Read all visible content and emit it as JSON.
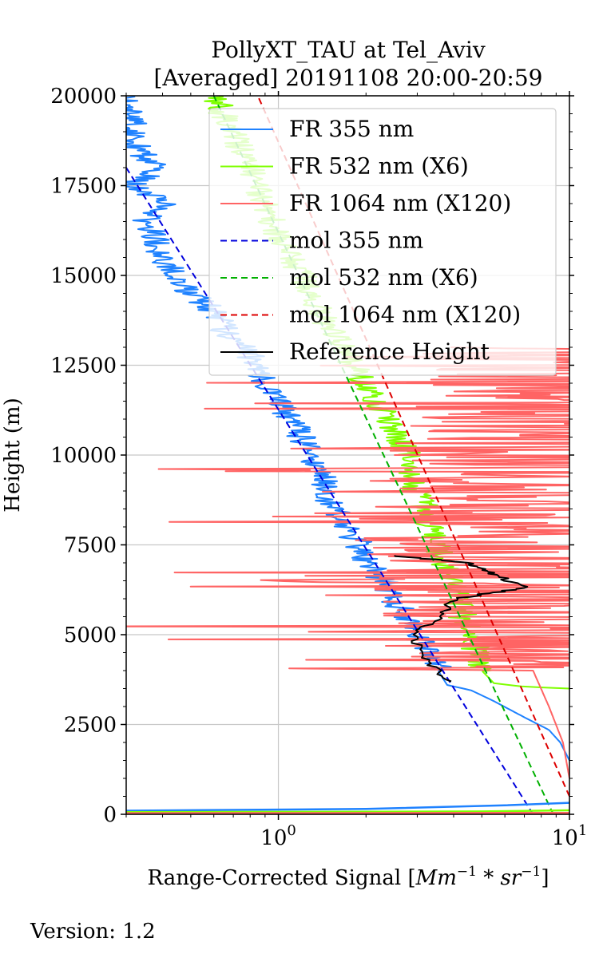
{
  "chart_data": {
    "type": "line",
    "title": [
      "PollyXT_TAU at Tel_Aviv",
      "[Averaged] 20191108 20:00-20:59"
    ],
    "xlabel": "Range-Corrected Signal [Mm^-1 * sr^-1]",
    "xlabel_parts": {
      "prefix": "Range-Corrected Signal [",
      "unit1": "Mm",
      "exp1": "−1",
      "mid": " * ",
      "unit2": "sr",
      "exp2": "−1",
      "suffix": "]"
    },
    "ylabel": "Height (m)",
    "xscale": "log",
    "xlim": [
      0.3,
      10
    ],
    "ylim": [
      0,
      20000
    ],
    "xticks": [
      {
        "value": 1,
        "base": "10",
        "exp": "0"
      },
      {
        "value": 10,
        "base": "10",
        "exp": "1"
      }
    ],
    "yticks": [
      "0",
      "2500",
      "5000",
      "7500",
      "10000",
      "12500",
      "15000",
      "17500",
      "20000"
    ],
    "grid": true,
    "legend_position": "upper-right",
    "version": "Version: 1.2",
    "series": [
      {
        "name": "FR 355 nm",
        "color": "#1f82ff",
        "style": "solid",
        "points": [
          [
            10,
            1500
          ],
          [
            9.3,
            2000
          ],
          [
            8.5,
            2350
          ],
          [
            7.0,
            2700
          ],
          [
            5.5,
            3150
          ],
          [
            4.6,
            3450
          ],
          [
            3.8,
            3600
          ],
          [
            3.6,
            3900
          ],
          [
            3.3,
            4500
          ],
          [
            3.0,
            5000
          ],
          [
            2.85,
            5300
          ],
          [
            2.5,
            6000
          ],
          [
            2.3,
            6500
          ],
          [
            2.0,
            7000
          ],
          [
            1.9,
            7500
          ],
          [
            1.7,
            8000
          ],
          [
            1.55,
            8500
          ],
          [
            1.45,
            9000
          ],
          [
            1.4,
            9500
          ],
          [
            1.3,
            10000
          ],
          [
            1.2,
            10500
          ],
          [
            1.1,
            11000
          ],
          [
            1.0,
            11500
          ],
          [
            0.9,
            12000
          ],
          [
            0.85,
            12500
          ],
          [
            0.75,
            13000
          ],
          [
            0.65,
            13500
          ],
          [
            0.6,
            14000
          ],
          [
            0.5,
            14500
          ],
          [
            0.45,
            15000
          ],
          [
            0.4,
            15500
          ],
          [
            0.38,
            16000
          ],
          [
            0.35,
            16500
          ],
          [
            0.4,
            17000
          ],
          [
            0.32,
            17500
          ],
          [
            0.38,
            18000
          ],
          [
            0.33,
            18500
          ],
          [
            0.32,
            19000
          ],
          [
            0.31,
            19500
          ],
          [
            0.3,
            20000
          ]
        ],
        "noise": 0.05,
        "noise_start": 4000
      },
      {
        "name": "FR 532 nm (X6)",
        "color": "#7fff00",
        "style": "solid",
        "points": [
          [
            10,
            3500
          ],
          [
            7.0,
            3550
          ],
          [
            5.5,
            3650
          ],
          [
            5.0,
            4000
          ],
          [
            4.8,
            4500
          ],
          [
            4.6,
            5000
          ],
          [
            4.3,
            5500
          ],
          [
            4.1,
            6000
          ],
          [
            3.9,
            6500
          ],
          [
            3.7,
            7000
          ],
          [
            3.5,
            7500
          ],
          [
            3.3,
            8000
          ],
          [
            3.2,
            8500
          ],
          [
            3.0,
            9000
          ],
          [
            2.9,
            9500
          ],
          [
            2.8,
            10000
          ],
          [
            2.6,
            10500
          ],
          [
            2.4,
            11000
          ],
          [
            2.2,
            11500
          ],
          [
            2.0,
            12000
          ],
          [
            1.8,
            12500
          ],
          [
            1.7,
            13000
          ],
          [
            1.5,
            13500
          ],
          [
            1.4,
            14000
          ],
          [
            1.3,
            14500
          ],
          [
            1.2,
            15000
          ],
          [
            1.1,
            15500
          ],
          [
            1.0,
            16000
          ],
          [
            0.95,
            16500
          ],
          [
            0.9,
            17000
          ],
          [
            0.85,
            17500
          ],
          [
            0.8,
            18000
          ],
          [
            0.75,
            18500
          ],
          [
            0.7,
            19000
          ],
          [
            0.65,
            19500
          ],
          [
            0.6,
            20000
          ]
        ],
        "noise": 0.05,
        "noise_start": 4000
      },
      {
        "name": "FR 1064 nm (X120)",
        "color": "#ff6464",
        "style": "solid",
        "points": [
          [
            10,
            1000
          ],
          [
            9.5,
            2000
          ],
          [
            8.5,
            3000
          ],
          [
            7.5,
            4000
          ],
          [
            7.0,
            5000
          ],
          [
            6.0,
            6000
          ],
          [
            5.5,
            7000
          ],
          [
            5.0,
            8000
          ],
          [
            5.5,
            9000
          ],
          [
            6.5,
            10000
          ],
          [
            8.0,
            11000
          ],
          [
            9.0,
            12000
          ],
          [
            10,
            13000
          ]
        ],
        "noise": 0.45,
        "noise_start": 4000
      },
      {
        "name": "mol 355 nm",
        "color": "#0000dd",
        "style": "dashed",
        "points": [
          [
            7.5,
            0
          ],
          [
            0.3,
            18000
          ]
        ]
      },
      {
        "name": "mol 532 nm (X6)",
        "color": "#00b000",
        "style": "dashed",
        "points": [
          [
            8.8,
            0
          ],
          [
            0.6,
            20000
          ]
        ]
      },
      {
        "name": "mol 1064 nm (X120)",
        "color": "#dd0000",
        "style": "dashed",
        "points": [
          [
            10,
            500
          ],
          [
            0.85,
            20000
          ]
        ]
      },
      {
        "name": "Reference Height",
        "color": "#000000",
        "style": "solid",
        "points": [
          [
            3.8,
            3700
          ],
          [
            3.2,
            4300
          ],
          [
            2.9,
            5000
          ],
          [
            3.6,
            5500
          ],
          [
            4.0,
            6000
          ],
          [
            7.0,
            6300
          ],
          [
            5.5,
            6700
          ],
          [
            4.5,
            7000
          ],
          [
            2.5,
            7200
          ]
        ]
      }
    ],
    "near_ground": [
      {
        "color": "#1f82ff",
        "points": [
          [
            0.3,
            100
          ],
          [
            2.0,
            150
          ],
          [
            6.0,
            250
          ],
          [
            10,
            320
          ]
        ]
      },
      {
        "color": "#7fff00",
        "points": [
          [
            0.3,
            60
          ],
          [
            5.0,
            80
          ],
          [
            10,
            110
          ]
        ]
      },
      {
        "color": "#ff6464",
        "points": [
          [
            0.3,
            30
          ],
          [
            10,
            40
          ]
        ]
      }
    ]
  }
}
